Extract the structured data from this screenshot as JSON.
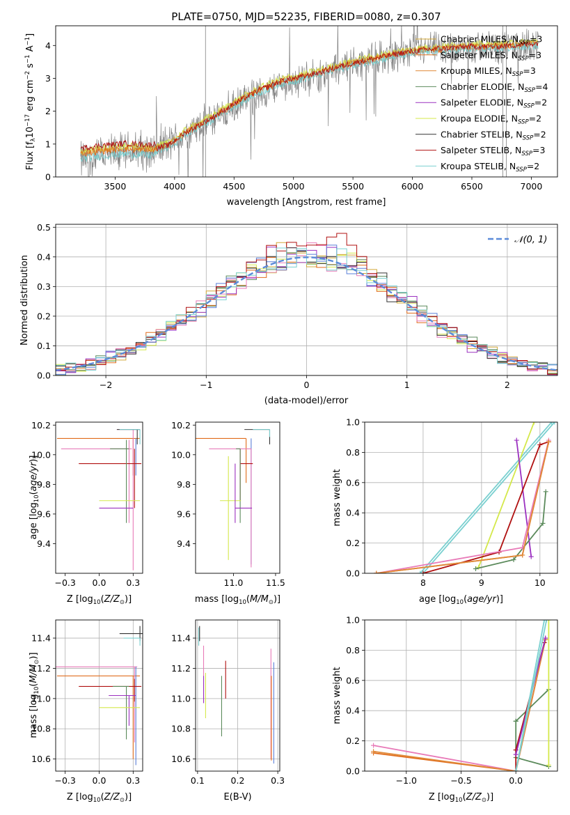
{
  "figure": {
    "title": "PLATE=0750, MJD=52235, FIBERID=0080, z=0.307"
  },
  "colors": {
    "chabrier_miles": "#d4a93a",
    "salpeter_miles": "#e06c1b",
    "kroupa_miles": "#e08a3a",
    "chabrier_elodie": "#5b8a5b",
    "salpeter_elodie": "#9b30c0",
    "kroupa_elodie": "#d4e84a",
    "chabrier_stelib": "#333333",
    "salpeter_stelib": "#b01010",
    "kroupa_stelib": "#7ad0d0",
    "pink": "#e87ab8",
    "blue": "#5a7fd8",
    "gray_spectrum": "#808080",
    "normal_curve": "#5b8bd9"
  },
  "chart_data": [
    {
      "id": "spectrum",
      "type": "line",
      "title": "PLATE=0750, MJD=52235, FIBERID=0080, z=0.307",
      "xlabel": "wavelength [Angstrom, rest frame]",
      "ylabel": "Flux [f_λ 10^-17 erg cm^-2 s^-1 A^-1]",
      "xlim": [
        3000,
        7220
      ],
      "ylim": [
        0,
        4.6
      ],
      "xticks": [
        3500,
        4000,
        4500,
        5000,
        5500,
        6000,
        6500,
        7000
      ],
      "yticks": [
        0,
        1,
        2,
        3,
        4
      ],
      "grid": false,
      "legend_position": "top-right",
      "legend": [
        {
          "label": "Chabrier MILES, N_SSP=3",
          "text": "Chabrier MILES, N",
          "sub": "SSP",
          "tail": "=3",
          "color": "#d4a93a"
        },
        {
          "label": "Salpeter MILES, N_SSP=3",
          "text": "Salpeter MILES, N",
          "sub": "SSP",
          "tail": "=3",
          "color": "#e06c1b"
        },
        {
          "label": "Kroupa MILES, N_SSP=3",
          "text": "Kroupa MILES, N",
          "sub": "SSP",
          "tail": "=3",
          "color": "#e08a3a"
        },
        {
          "label": "Chabrier ELODIE, N_SSP=4",
          "text": "Chabrier ELODIE, N",
          "sub": "SSP",
          "tail": "=4",
          "color": "#5b8a5b"
        },
        {
          "label": "Salpeter ELODIE, N_SSP=2",
          "text": "Salpeter ELODIE, N",
          "sub": "SSP",
          "tail": "=2",
          "color": "#9b30c0"
        },
        {
          "label": "Kroupa ELODIE, N_SSP=2",
          "text": "Kroupa ELODIE, N",
          "sub": "SSP",
          "tail": "=2",
          "color": "#d4e84a"
        },
        {
          "label": "Chabrier STELIB, N_SSP=2",
          "text": "Chabrier STELIB, N",
          "sub": "SSP",
          "tail": "=2",
          "color": "#333333"
        },
        {
          "label": "Salpeter STELIB, N_SSP=3",
          "text": "Salpeter STELIB, N",
          "sub": "SSP",
          "tail": "=3",
          "color": "#b01010"
        },
        {
          "label": "Kroupa STELIB, N_SSP=2",
          "text": "Kroupa STELIB, N",
          "sub": "SSP",
          "tail": "=2",
          "color": "#7ad0d0"
        }
      ],
      "data_trend": {
        "x": [
          3210,
          3400,
          3600,
          3800,
          3950,
          4100,
          4300,
          4500,
          4700,
          4900,
          5100,
          5300,
          5500,
          5700,
          5900,
          6100,
          6300,
          6500,
          6700,
          6900,
          7050
        ],
        "y": [
          0.5,
          0.65,
          0.75,
          0.85,
          1.0,
          1.3,
          1.7,
          2.1,
          2.5,
          2.8,
          3.0,
          3.2,
          3.45,
          3.6,
          3.75,
          3.85,
          3.9,
          3.95,
          3.95,
          4.0,
          4.05
        ]
      },
      "models_trend": {
        "x": [
          3210,
          3400,
          3600,
          3800,
          3950,
          4100,
          4300,
          4500,
          4700,
          4900,
          5100,
          5300,
          5500,
          5700,
          5900,
          6100,
          6300,
          6500,
          6700,
          6900,
          7050
        ],
        "y": [
          0.7,
          0.8,
          0.85,
          0.8,
          0.95,
          1.35,
          1.75,
          2.2,
          2.6,
          2.9,
          3.05,
          3.25,
          3.45,
          3.6,
          3.75,
          3.85,
          3.9,
          3.95,
          3.95,
          4.0,
          4.05
        ]
      }
    },
    {
      "id": "residuals",
      "type": "line",
      "xlabel": "(data-model)/error",
      "ylabel": "Normed distribution",
      "xlim": [
        -2.5,
        2.5
      ],
      "ylim": [
        0,
        0.51
      ],
      "xticks": [
        -2,
        -1,
        0,
        1,
        2
      ],
      "yticks": [
        0.0,
        0.1,
        0.2,
        0.3,
        0.4,
        0.5
      ],
      "grid": true,
      "legend_position": "top-right",
      "legend": [
        {
          "label": "𝒩(0, 1)",
          "color": "#5b8bd9"
        }
      ],
      "bin_width": 0.1
    },
    {
      "id": "age_vs_Z",
      "type": "scatter",
      "xlabel": "Z [log10(Z/Z☉)]",
      "ylabel": "age [log10(age/yr)]",
      "xlim": [
        -0.32,
        0.32
      ],
      "ylim": [
        9.2,
        10.22
      ],
      "xticks": [
        -0.25,
        0.0,
        0.25
      ],
      "yticks": [
        9.4,
        9.6,
        9.8,
        10.0,
        10.2
      ],
      "grid": false,
      "points": [
        {
          "x": 0.25,
          "y": 10.11,
          "xerr": [
            0.56,
            0.05
          ],
          "yerr": [
            0.25,
            0.0
          ],
          "color": "#e06c1b"
        },
        {
          "x": 0.27,
          "y": 10.11,
          "xerr": [
            0.0,
            0.0
          ],
          "yerr": [
            0.25,
            0.0
          ],
          "color": "#5a7fd8"
        },
        {
          "x": 0.25,
          "y": 10.17,
          "xerr": [
            0.12,
            0.05
          ],
          "yerr": [
            0.95,
            0.0
          ],
          "color": "#e87ab8"
        },
        {
          "x": 0.22,
          "y": 10.04,
          "xerr": [
            0.5,
            0.02
          ],
          "yerr": [
            0.5,
            0.06
          ],
          "color": "#e87ab8"
        },
        {
          "x": 0.28,
          "y": 10.17,
          "xerr": [
            0.15,
            0.02
          ],
          "yerr": [
            0.1,
            0.0
          ],
          "color": "#333333"
        },
        {
          "x": 0.26,
          "y": 9.94,
          "xerr": [
            0.41,
            0.05
          ],
          "yerr": [
            0.3,
            0.1
          ],
          "color": "#b01010"
        },
        {
          "x": 0.2,
          "y": 10.04,
          "xerr": [
            0.12,
            0.02
          ],
          "yerr": [
            0.5,
            0.06
          ],
          "color": "#5b8a5b"
        },
        {
          "x": 0.3,
          "y": 10.17,
          "xerr": [
            0.15,
            0.0
          ],
          "yerr": [
            0.1,
            0.0
          ],
          "color": "#7ad0d0"
        },
        {
          "x": 0.0,
          "y": 9.69,
          "xerr": [
            0.0,
            0.3
          ],
          "yerr": [
            0.0,
            0.0
          ],
          "color": "#d4e84a"
        },
        {
          "x": 0.0,
          "y": 9.64,
          "xerr": [
            0.0,
            0.25
          ],
          "yerr": [
            0.0,
            0.0
          ],
          "color": "#9b30c0"
        }
      ]
    },
    {
      "id": "age_vs_mass",
      "type": "scatter",
      "xlabel": "mass [log10(M/M☉)]",
      "ylabel": "",
      "xlim": [
        10.55,
        11.55
      ],
      "ylim": [
        9.2,
        10.22
      ],
      "xticks": [
        11.0,
        11.5
      ],
      "yticks": [
        9.4,
        9.6,
        9.8,
        10.0,
        10.2
      ],
      "grid": false,
      "points": [
        {
          "x": 11.15,
          "y": 10.11,
          "xerr": [
            0.6,
            0.0
          ],
          "yerr": [
            0.3,
            0.0
          ],
          "color": "#e06c1b"
        },
        {
          "x": 11.21,
          "y": 10.11,
          "xerr": [
            0.0,
            0.0
          ],
          "yerr": [
            0.85,
            0.0
          ],
          "color": "#5a7fd8"
        },
        {
          "x": 11.21,
          "y": 10.04,
          "xerr": [
            0.5,
            0.0
          ],
          "yerr": [
            0.8,
            0.0
          ],
          "color": "#e87ab8"
        },
        {
          "x": 11.43,
          "y": 10.17,
          "xerr": [
            0.3,
            0.0
          ],
          "yerr": [
            0.1,
            0.0
          ],
          "color": "#333333"
        },
        {
          "x": 11.08,
          "y": 9.94,
          "xerr": [
            0.0,
            0.15
          ],
          "yerr": [
            0.25,
            0.1
          ],
          "color": "#b01010"
        },
        {
          "x": 11.08,
          "y": 10.04,
          "xerr": [
            0.05,
            0.0
          ],
          "yerr": [
            0.5,
            0.0
          ],
          "color": "#5b8a5b"
        },
        {
          "x": 11.43,
          "y": 10.17,
          "xerr": [
            0.2,
            0.0
          ],
          "yerr": [
            0.05,
            0.0
          ],
          "color": "#7ad0d0"
        },
        {
          "x": 10.94,
          "y": 9.69,
          "xerr": [
            0.1,
            0.15
          ],
          "yerr": [
            0.4,
            0.3
          ],
          "color": "#d4e84a"
        },
        {
          "x": 11.02,
          "y": 9.64,
          "xerr": [
            0.0,
            0.2
          ],
          "yerr": [
            0.1,
            0.3
          ],
          "color": "#9b30c0"
        }
      ]
    },
    {
      "id": "weight_vs_age",
      "type": "line",
      "xlabel": "age [log10(age/yr)]",
      "ylabel": "mass weight",
      "xlim": [
        7.0,
        10.3
      ],
      "ylim": [
        0,
        1.0
      ],
      "xticks": [
        8,
        9,
        10
      ],
      "yticks": [
        0.0,
        0.2,
        0.4,
        0.6,
        0.8,
        1.0
      ],
      "grid": true,
      "series": [
        {
          "color": "#7ad0d0",
          "x": [
            7.95,
            10.2
          ],
          "y": [
            0.0,
            1.0
          ]
        },
        {
          "color": "#7ad0d0",
          "x": [
            8.0,
            10.25
          ],
          "y": [
            0.0,
            1.0
          ]
        },
        {
          "color": "#d4e84a",
          "x": [
            8.95,
            9.9
          ],
          "y": [
            0.04,
            1.0
          ]
        },
        {
          "color": "#9b30c0",
          "x": [
            9.6,
            9.85
          ],
          "y": [
            0.88,
            0.11
          ]
        },
        {
          "color": "#b01010",
          "x": [
            8.0,
            9.3,
            10.0,
            10.15
          ],
          "y": [
            0.0,
            0.14,
            0.85,
            0.87
          ]
        },
        {
          "color": "#5b8a5b",
          "x": [
            8.9,
            9.55,
            10.05,
            10.1
          ],
          "y": [
            0.03,
            0.09,
            0.33,
            0.54
          ]
        },
        {
          "color": "#e87ab8",
          "x": [
            7.2,
            9.7,
            10.15
          ],
          "y": [
            0.0,
            0.17,
            0.88
          ]
        },
        {
          "color": "#e06c1b",
          "x": [
            7.2,
            9.7,
            10.15
          ],
          "y": [
            0.0,
            0.12,
            0.87
          ]
        },
        {
          "color": "#e08a3a",
          "x": [
            7.2,
            9.7,
            10.15
          ],
          "y": [
            0.0,
            0.12,
            0.87
          ]
        }
      ]
    },
    {
      "id": "mass_vs_Z",
      "type": "scatter",
      "xlabel": "Z [log10(Z/Z☉)]",
      "ylabel": "mass [log10(M/M☉)]",
      "xlim": [
        -0.32,
        0.32
      ],
      "ylim": [
        10.52,
        11.52
      ],
      "xticks": [
        -0.25,
        0.0,
        0.25
      ],
      "yticks": [
        10.6,
        10.8,
        11.0,
        11.2,
        11.4
      ],
      "grid": true,
      "points": [
        {
          "x": 0.25,
          "y": 11.15,
          "xerr": [
            0.56,
            0.05
          ],
          "yerr": [
            0.55,
            0.0
          ],
          "color": "#e06c1b"
        },
        {
          "x": 0.26,
          "y": 11.21,
          "xerr": [
            0.6,
            0.02
          ],
          "yerr": [
            0.5,
            0.0
          ],
          "color": "#e87ab8"
        },
        {
          "x": 0.27,
          "y": 11.21,
          "xerr": [
            0.0,
            0.0
          ],
          "yerr": [
            0.65,
            0.0
          ],
          "color": "#5a7fd8"
        },
        {
          "x": 0.3,
          "y": 11.43,
          "xerr": [
            0.15,
            0.02
          ],
          "yerr": [
            0.05,
            0.05
          ],
          "color": "#333333"
        },
        {
          "x": 0.3,
          "y": 11.4,
          "xerr": [
            0.12,
            0.0
          ],
          "yerr": [
            0.05,
            0.0
          ],
          "color": "#7ad0d0"
        },
        {
          "x": 0.26,
          "y": 11.08,
          "xerr": [
            0.41,
            0.05
          ],
          "yerr": [
            0.1,
            0.05
          ],
          "color": "#b01010"
        },
        {
          "x": 0.2,
          "y": 11.08,
          "xerr": [
            0.1,
            0.02
          ],
          "yerr": [
            0.35,
            0.0
          ],
          "color": "#5b8a5b"
        },
        {
          "x": 0.22,
          "y": 11.02,
          "xerr": [
            0.15,
            0.05
          ],
          "yerr": [
            0.2,
            0.0
          ],
          "color": "#9b30c0"
        },
        {
          "x": 0.0,
          "y": 10.94,
          "xerr": [
            0.0,
            0.3
          ],
          "yerr": [
            0.0,
            0.0
          ],
          "color": "#d4e84a"
        }
      ]
    },
    {
      "id": "mass_vs_ebv",
      "type": "scatter",
      "xlabel": "E(B-V)",
      "ylabel": "",
      "xlim": [
        0.095,
        0.305
      ],
      "ylim": [
        10.52,
        11.52
      ],
      "xticks": [
        0.1,
        0.2,
        0.3
      ],
      "yticks": [
        10.6,
        10.8,
        11.0,
        11.2,
        11.4
      ],
      "grid": true,
      "points": [
        {
          "x": 0.103,
          "y": 11.4,
          "yerr": [
            0.05,
            0.07
          ],
          "color": "#7ad0d0"
        },
        {
          "x": 0.105,
          "y": 11.43,
          "yerr": [
            0.05,
            0.05
          ],
          "color": "#333333"
        },
        {
          "x": 0.115,
          "y": 11.15,
          "yerr": [
            0.18,
            0.2
          ],
          "color": "#e87ab8"
        },
        {
          "x": 0.12,
          "y": 11.02,
          "yerr": [
            0.15,
            0.15
          ],
          "color": "#d4e84a"
        },
        {
          "x": 0.115,
          "y": 11.1,
          "yerr": [
            0.13,
            0.05
          ],
          "color": "#9b30c0"
        },
        {
          "x": 0.16,
          "y": 11.0,
          "yerr": [
            0.25,
            0.15
          ],
          "color": "#5b8a5b"
        },
        {
          "x": 0.17,
          "y": 11.12,
          "yerr": [
            0.12,
            0.13
          ],
          "color": "#b01010"
        },
        {
          "x": 0.283,
          "y": 11.0,
          "yerr": [
            0.4,
            0.33
          ],
          "color": "#e87ab8"
        },
        {
          "x": 0.284,
          "y": 10.85,
          "yerr": [
            0.26,
            0.3
          ],
          "color": "#e06c1b"
        },
        {
          "x": 0.29,
          "y": 10.9,
          "yerr": [
            0.33,
            0.34
          ],
          "color": "#5a7fd8"
        }
      ]
    },
    {
      "id": "weight_vs_Z",
      "type": "line",
      "xlabel": "Z [log10(Z/Z☉)]",
      "ylabel": "mass weight",
      "xlim": [
        -1.38,
        0.38
      ],
      "ylim": [
        0,
        1.0
      ],
      "xticks": [
        -1.0,
        -0.5,
        0.0
      ],
      "yticks": [
        0.0,
        0.2,
        0.4,
        0.6,
        0.8,
        1.0
      ],
      "grid": true,
      "series": [
        {
          "color": "#e87ab8",
          "x": [
            -1.3,
            0.0,
            0.27
          ],
          "y": [
            0.17,
            0.0,
            0.88
          ]
        },
        {
          "color": "#e06c1b",
          "x": [
            -1.3,
            0.0,
            0.27
          ],
          "y": [
            0.12,
            0.0,
            0.87
          ]
        },
        {
          "color": "#e08a3a",
          "x": [
            -1.3,
            0.0,
            0.27
          ],
          "y": [
            0.13,
            0.0,
            0.87
          ]
        },
        {
          "color": "#5b8a5b",
          "x": [
            0.0,
            0.0,
            0.3
          ],
          "y": [
            0.33,
            0.09,
            0.03
          ]
        },
        {
          "color": "#5b8a5b",
          "x": [
            0.0,
            0.3
          ],
          "y": [
            0.33,
            0.54
          ]
        },
        {
          "color": "#b01010",
          "x": [
            0.0,
            0.0,
            0.26
          ],
          "y": [
            0.0,
            0.14,
            0.85
          ]
        },
        {
          "color": "#9b30c0",
          "x": [
            0.0,
            0.27
          ],
          "y": [
            0.11,
            0.88
          ]
        },
        {
          "color": "#d4e84a",
          "x": [
            0.3,
            0.3
          ],
          "y": [
            0.04,
            1.0
          ]
        },
        {
          "color": "#7ad0d0",
          "x": [
            0.0,
            0.26
          ],
          "y": [
            0.0,
            1.0
          ]
        },
        {
          "color": "#7ad0d0",
          "x": [
            0.0,
            0.28
          ],
          "y": [
            0.0,
            1.0
          ]
        }
      ]
    }
  ]
}
